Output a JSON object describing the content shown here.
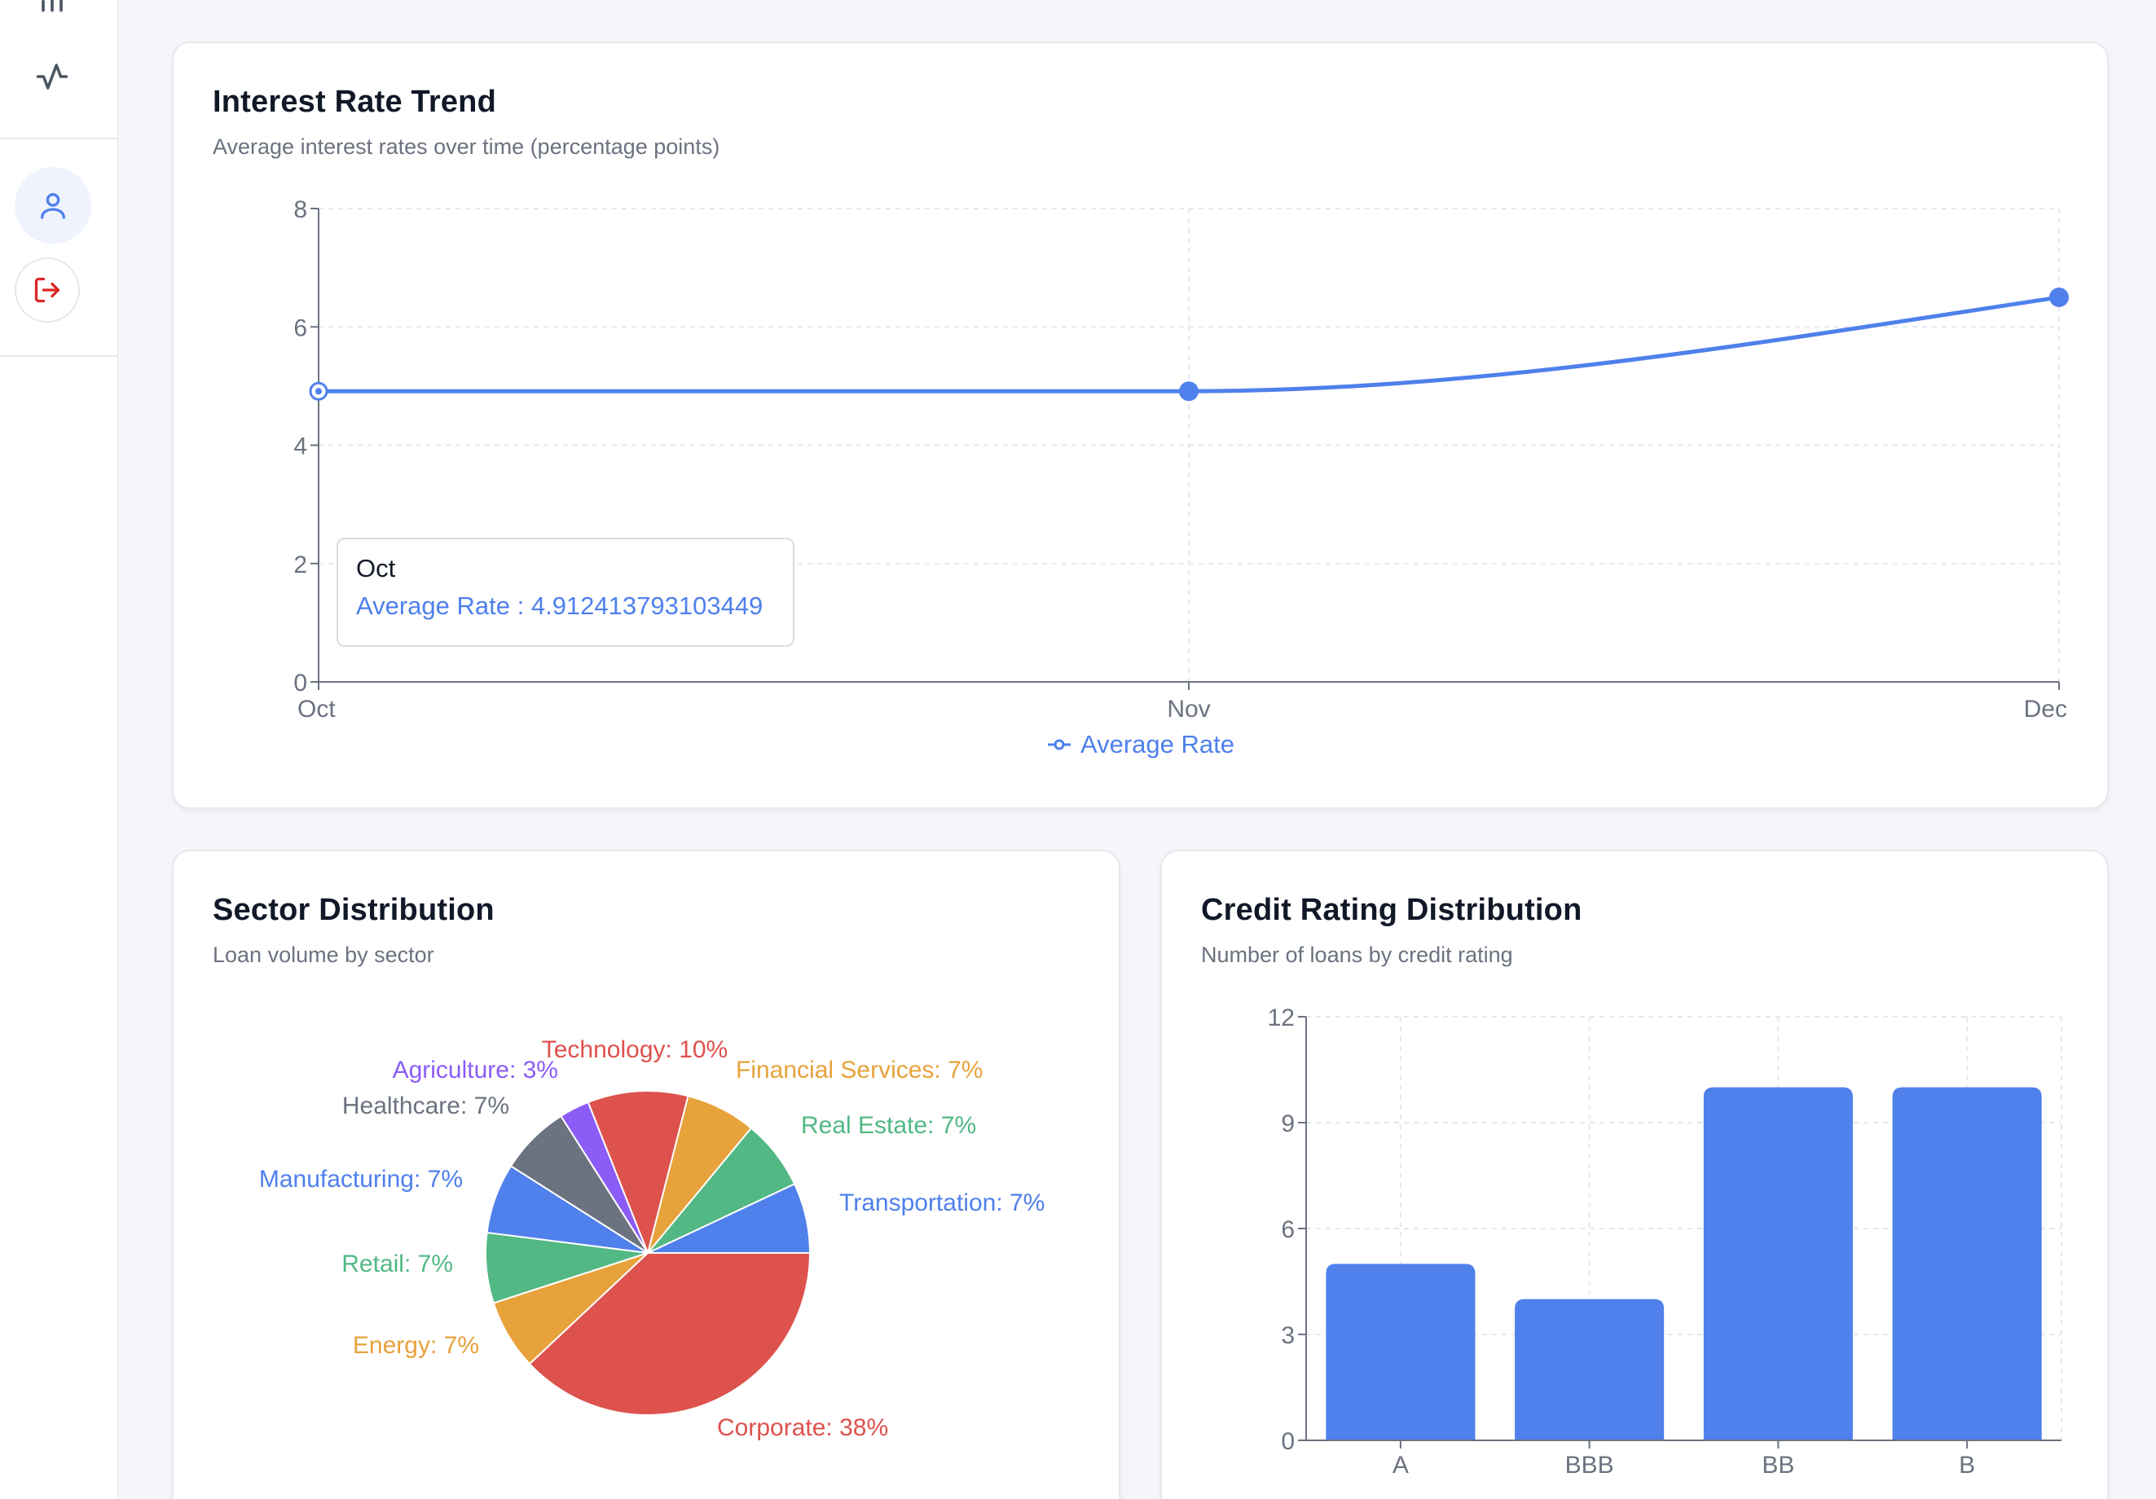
{
  "sidebar": {
    "icons": [
      "bar-chart-icon",
      "activity-icon",
      "user-icon",
      "logout-icon"
    ]
  },
  "trend_card": {
    "title": "Interest Rate Trend",
    "subtitle": "Average interest rates over time (percentage points)",
    "tooltip": {
      "label": "Oct",
      "value": "Average Rate : 4.912413793103449"
    },
    "legend_label": "Average Rate"
  },
  "sector_card": {
    "title": "Sector Distribution",
    "subtitle": "Loan volume by sector"
  },
  "credit_card": {
    "title": "Credit Rating Distribution",
    "subtitle": "Number of loans by credit rating"
  },
  "colors": {
    "blue": "#4f80ec",
    "red": "#dd524d",
    "orange": "#e7a23c",
    "green": "#52b884",
    "gray": "#6b7280",
    "purple": "#8b5cf6"
  },
  "chart_data": [
    {
      "type": "line",
      "categories": [
        "Oct",
        "Nov",
        "Dec"
      ],
      "series": [
        {
          "name": "Average Rate",
          "values": [
            4.912413793103449,
            4.912413793103449,
            6.5
          ]
        }
      ],
      "ylim": [
        0,
        8
      ],
      "yticks": [
        0,
        2,
        4,
        6,
        8
      ],
      "grid": true,
      "legend": "bottom"
    },
    {
      "type": "pie",
      "slices": [
        {
          "label": "Transportation: 7%",
          "value": 7,
          "color": "#4f80ec"
        },
        {
          "label": "Real Estate: 7%",
          "value": 7,
          "color": "#52b884"
        },
        {
          "label": "Financial Services: 7%",
          "value": 7,
          "color": "#e7a23c"
        },
        {
          "label": "Technology: 10%",
          "value": 10,
          "color": "#dd524d"
        },
        {
          "label": "Agriculture: 3%",
          "value": 3,
          "color": "#8b5cf6"
        },
        {
          "label": "Healthcare: 7%",
          "value": 7,
          "color": "#6b7280"
        },
        {
          "label": "Manufacturing: 7%",
          "value": 7,
          "color": "#4f80ec"
        },
        {
          "label": "Retail: 7%",
          "value": 7,
          "color": "#52b884"
        },
        {
          "label": "Energy: 7%",
          "value": 7,
          "color": "#e7a23c"
        },
        {
          "label": "Corporate: 38%",
          "value": 38,
          "color": "#dd524d"
        }
      ]
    },
    {
      "type": "bar",
      "categories": [
        "A",
        "BBB",
        "BB",
        "B"
      ],
      "values": [
        5,
        4,
        10,
        10
      ],
      "ylim": [
        0,
        12
      ],
      "yticks": [
        0,
        3,
        6,
        9,
        12
      ],
      "grid": true
    }
  ]
}
